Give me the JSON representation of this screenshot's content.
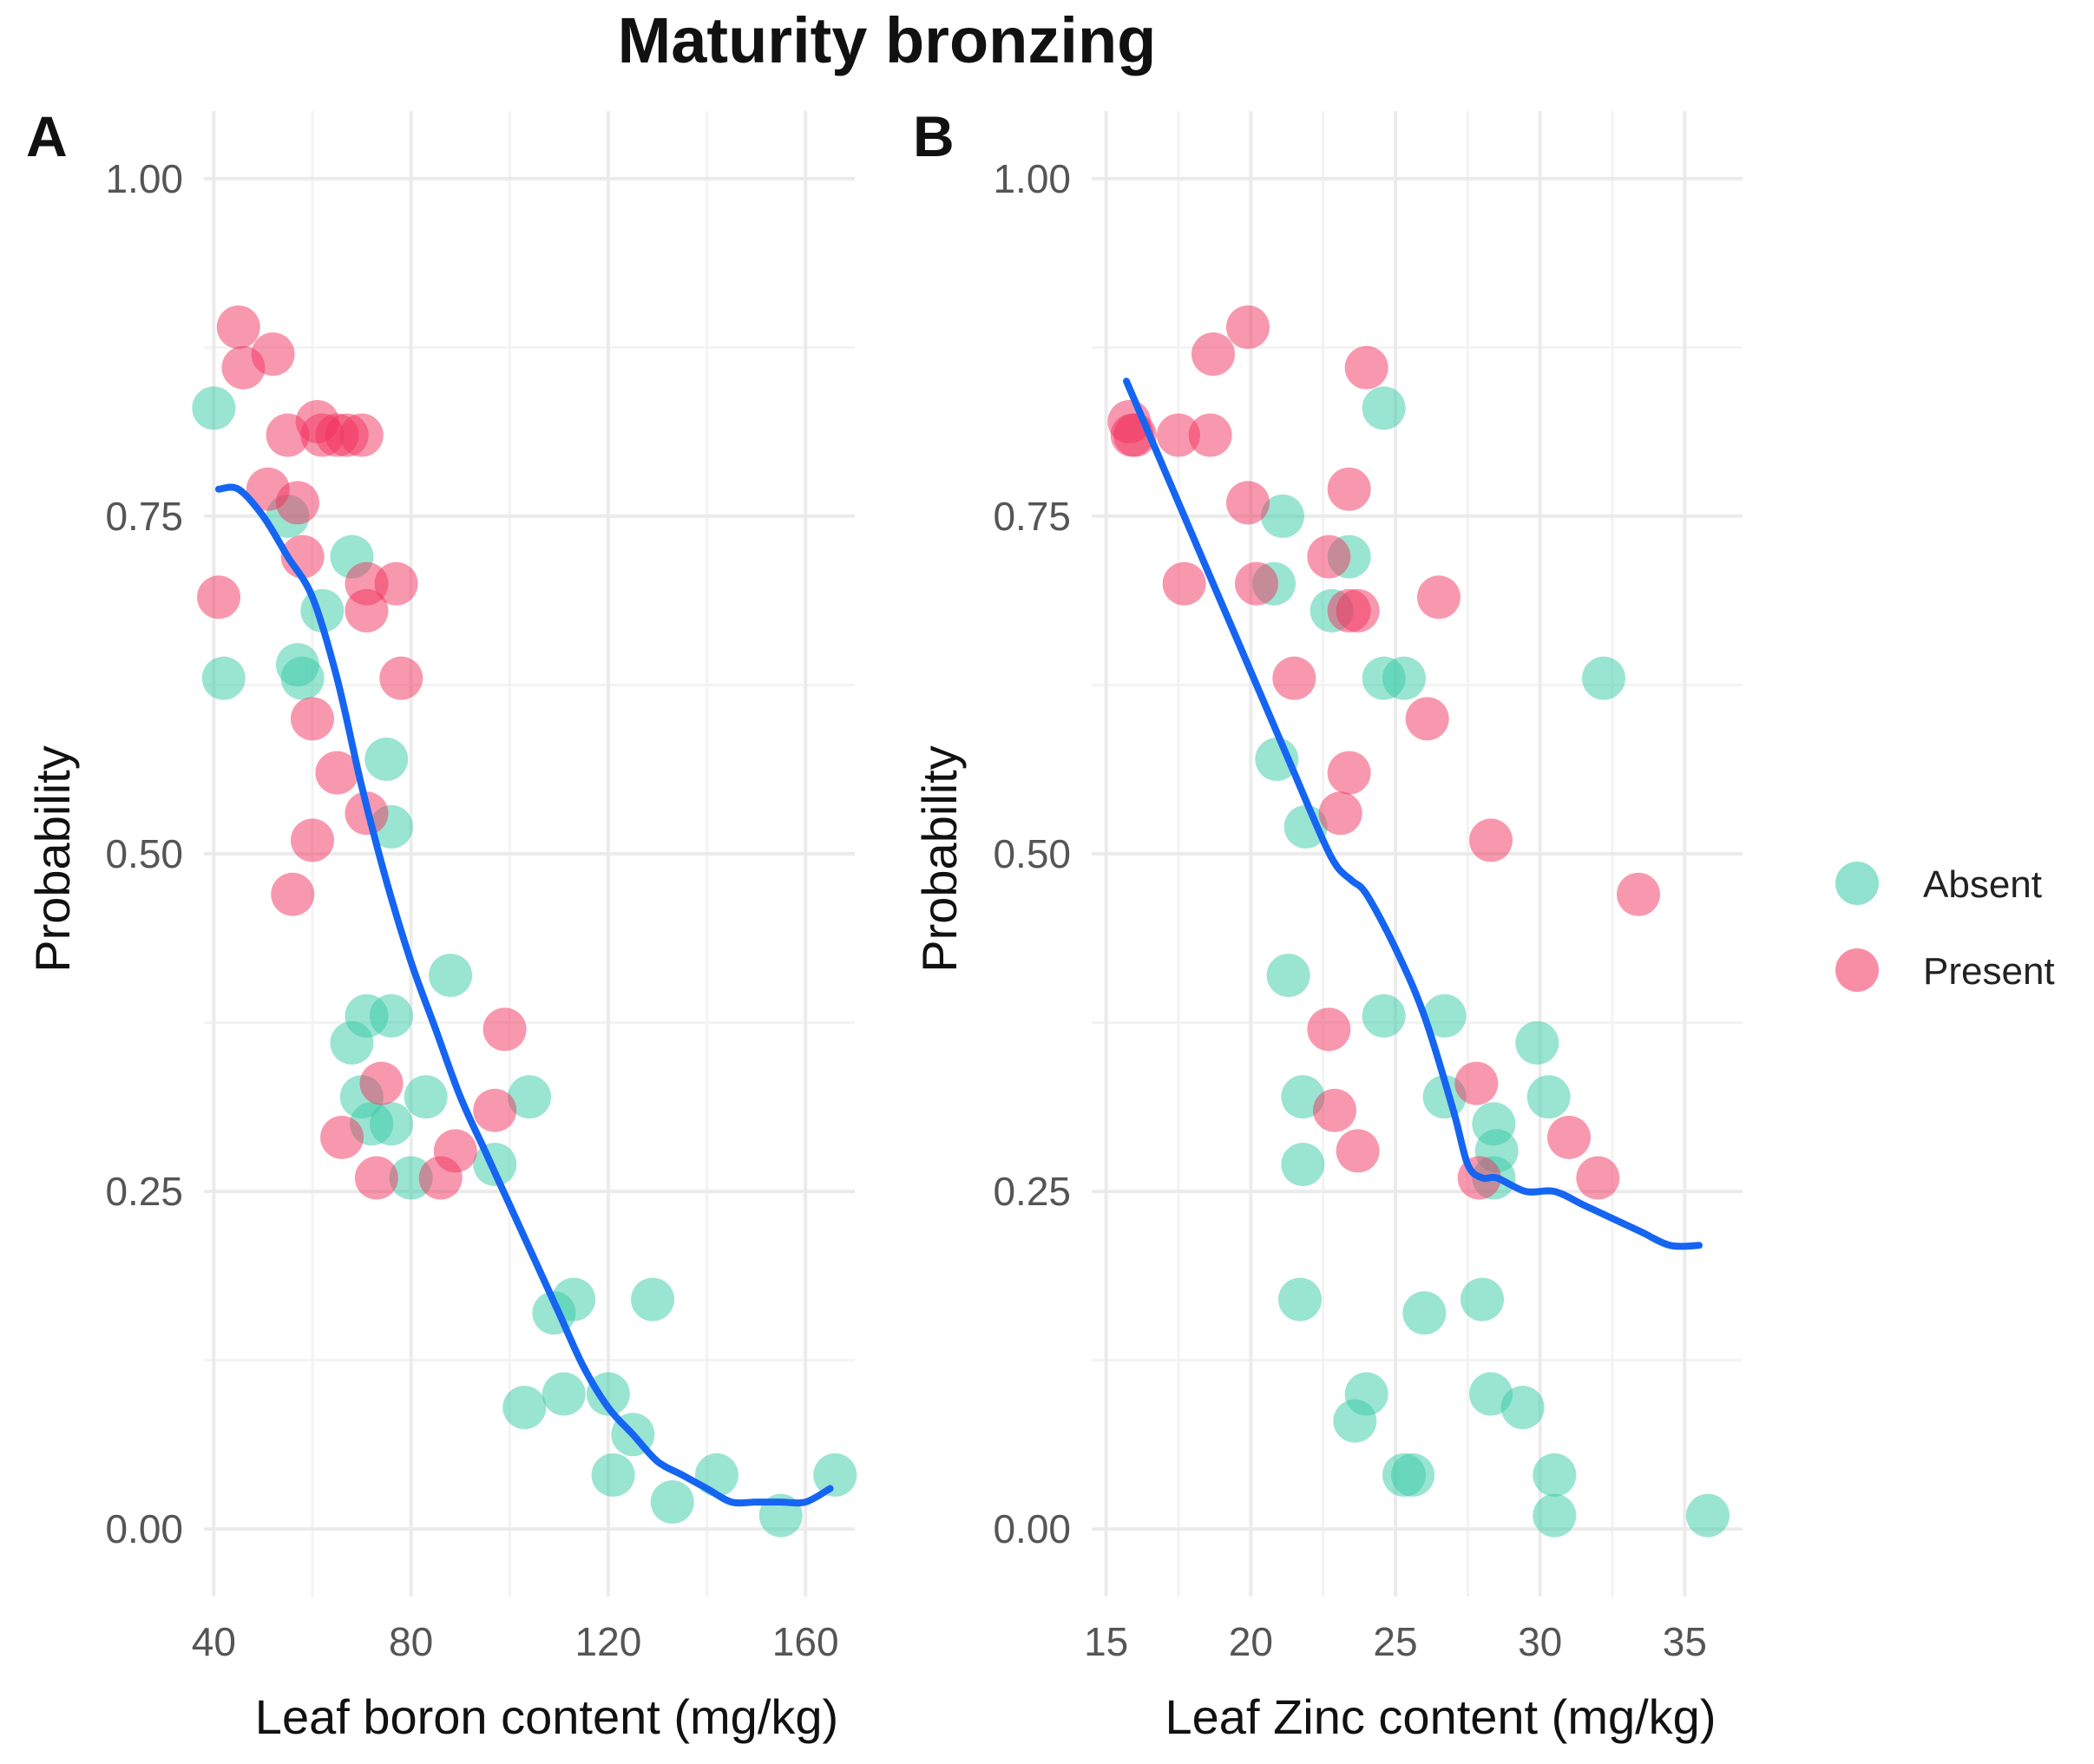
{
  "figure": {
    "title": "Maturity bronzing"
  },
  "colors": {
    "absent": "#35c9a6",
    "present": "#f2325d",
    "trend": "#1565f2"
  },
  "legend": [
    {
      "key": "absent",
      "label": "Absent"
    },
    {
      "key": "present",
      "label": "Present"
    }
  ],
  "chart_data": [
    {
      "type": "scatter",
      "panel": "A",
      "title": "Maturity bronzing",
      "xlabel": "Leaf boron content (mg/kg)",
      "ylabel": "Probability",
      "xlim": [
        38,
        170
      ],
      "ylim": [
        -0.05,
        1.05
      ],
      "xticks": [
        40,
        80,
        120,
        160
      ],
      "xticklabels": [
        "40",
        "80",
        "120",
        "160"
      ],
      "yticks": [
        0,
        0.25,
        0.5,
        0.75,
        1
      ],
      "yticklabels": [
        "0.00",
        "0.25",
        "0.50",
        "0.75",
        "1.00"
      ],
      "grid": true,
      "legend_position": "right",
      "series": [
        {
          "name": "Absent",
          "points": [
            [
              40,
              0.83
            ],
            [
              42,
              0.63
            ],
            [
              55,
              0.75
            ],
            [
              57,
              0.64
            ],
            [
              58,
              0.63
            ],
            [
              62,
              0.68
            ],
            [
              68,
              0.72
            ],
            [
              68,
              0.36
            ],
            [
              70,
              0.32
            ],
            [
              71,
              0.38
            ],
            [
              72,
              0.3
            ],
            [
              75,
              0.57
            ],
            [
              76,
              0.38
            ],
            [
              76,
              0.52
            ],
            [
              76,
              0.3
            ],
            [
              80,
              0.26
            ],
            [
              83,
              0.32
            ],
            [
              88,
              0.41
            ],
            [
              97,
              0.27
            ],
            [
              103,
              0.09
            ],
            [
              104,
              0.32
            ],
            [
              109,
              0.16
            ],
            [
              111,
              0.1
            ],
            [
              113,
              0.17
            ],
            [
              120,
              0.1
            ],
            [
              121,
              0.04
            ],
            [
              125,
              0.07
            ],
            [
              129,
              0.17
            ],
            [
              133,
              0.02
            ],
            [
              142,
              0.04
            ],
            [
              155,
              0.01
            ],
            [
              166,
              0.04
            ]
          ]
        },
        {
          "name": "Present",
          "points": [
            [
              41,
              0.69
            ],
            [
              45,
              0.89
            ],
            [
              46,
              0.86
            ],
            [
              52,
              0.87
            ],
            [
              51,
              0.77
            ],
            [
              55,
              0.81
            ],
            [
              57,
              0.76
            ],
            [
              58,
              0.72
            ],
            [
              60,
              0.6
            ],
            [
              60,
              0.51
            ],
            [
              61,
              0.82
            ],
            [
              62,
              0.81
            ],
            [
              65,
              0.81
            ],
            [
              67,
              0.81
            ],
            [
              65,
              0.56
            ],
            [
              66,
              0.29
            ],
            [
              70,
              0.81
            ],
            [
              71,
              0.7
            ],
            [
              71,
              0.68
            ],
            [
              71,
              0.53
            ],
            [
              73,
              0.26
            ],
            [
              74,
              0.33
            ],
            [
              77,
              0.7
            ],
            [
              78,
              0.63
            ],
            [
              56,
              0.47
            ],
            [
              86,
              0.26
            ],
            [
              89,
              0.28
            ],
            [
              97,
              0.31
            ],
            [
              99,
              0.37
            ]
          ]
        }
      ],
      "trend": {
        "name": "fitted curve",
        "points": [
          [
            41,
            0.77
          ],
          [
            45,
            0.77
          ],
          [
            50,
            0.75
          ],
          [
            55,
            0.72
          ],
          [
            60,
            0.69
          ],
          [
            65,
            0.63
          ],
          [
            70,
            0.55
          ],
          [
            75,
            0.48
          ],
          [
            80,
            0.42
          ],
          [
            85,
            0.37
          ],
          [
            90,
            0.32
          ],
          [
            95,
            0.28
          ],
          [
            100,
            0.24
          ],
          [
            105,
            0.2
          ],
          [
            110,
            0.16
          ],
          [
            115,
            0.12
          ],
          [
            120,
            0.09
          ],
          [
            125,
            0.07
          ],
          [
            130,
            0.05
          ],
          [
            135,
            0.04
          ],
          [
            140,
            0.03
          ],
          [
            145,
            0.02
          ],
          [
            150,
            0.02
          ],
          [
            155,
            0.02
          ],
          [
            160,
            0.02
          ],
          [
            165,
            0.03
          ]
        ]
      }
    },
    {
      "type": "scatter",
      "panel": "B",
      "title": "Maturity bronzing",
      "xlabel": "Leaf Zinc content (mg/kg)",
      "ylabel": "Probability",
      "xlim": [
        14.5,
        37
      ],
      "ylim": [
        -0.05,
        1.05
      ],
      "xticks": [
        15,
        20,
        25,
        30,
        35
      ],
      "xticklabels": [
        "15",
        "20",
        "25",
        "30",
        "35"
      ],
      "yticks": [
        0,
        0.25,
        0.5,
        0.75,
        1
      ],
      "yticklabels": [
        "0.00",
        "0.25",
        "0.50",
        "0.75",
        "1.00"
      ],
      "grid": true,
      "legend_position": "right",
      "series": [
        {
          "name": "Absent",
          "points": [
            [
              20.8,
              0.7
            ],
            [
              21.1,
              0.75
            ],
            [
              21.3,
              0.41
            ],
            [
              20.9,
              0.57
            ],
            [
              21.9,
              0.52
            ],
            [
              21.8,
              0.32
            ],
            [
              21.8,
              0.27
            ],
            [
              21.7,
              0.17
            ],
            [
              22.8,
              0.68
            ],
            [
              23.4,
              0.72
            ],
            [
              23.6,
              0.08
            ],
            [
              24.0,
              0.1
            ],
            [
              24.6,
              0.83
            ],
            [
              24.6,
              0.63
            ],
            [
              24.6,
              0.38
            ],
            [
              25.3,
              0.63
            ],
            [
              25.3,
              0.04
            ],
            [
              25.6,
              0.04
            ],
            [
              26.0,
              0.16
            ],
            [
              26.7,
              0.38
            ],
            [
              26.7,
              0.32
            ],
            [
              28.0,
              0.17
            ],
            [
              28.3,
              0.1
            ],
            [
              28.4,
              0.3
            ],
            [
              28.5,
              0.28
            ],
            [
              28.4,
              0.26
            ],
            [
              29.4,
              0.09
            ],
            [
              29.9,
              0.36
            ],
            [
              30.3,
              0.32
            ],
            [
              30.5,
              0.04
            ],
            [
              30.5,
              0.01
            ],
            [
              32.2,
              0.63
            ],
            [
              35.8,
              0.01
            ]
          ]
        },
        {
          "name": "Present",
          "points": [
            [
              15.8,
              0.82
            ],
            [
              15.9,
              0.81
            ],
            [
              16.0,
              0.81
            ],
            [
              17.5,
              0.81
            ],
            [
              17.7,
              0.7
            ],
            [
              18.6,
              0.81
            ],
            [
              18.7,
              0.87
            ],
            [
              19.9,
              0.89
            ],
            [
              19.9,
              0.76
            ],
            [
              20.2,
              0.7
            ],
            [
              21.5,
              0.63
            ],
            [
              22.7,
              0.72
            ],
            [
              22.7,
              0.37
            ],
            [
              22.9,
              0.31
            ],
            [
              23.1,
              0.53
            ],
            [
              23.4,
              0.56
            ],
            [
              23.4,
              0.77
            ],
            [
              23.4,
              0.68
            ],
            [
              23.7,
              0.68
            ],
            [
              23.7,
              0.28
            ],
            [
              24.0,
              0.86
            ],
            [
              26.1,
              0.6
            ],
            [
              26.5,
              0.69
            ],
            [
              27.8,
              0.33
            ],
            [
              27.9,
              0.26
            ],
            [
              28.3,
              0.51
            ],
            [
              31.0,
              0.29
            ],
            [
              32.0,
              0.26
            ],
            [
              33.4,
              0.47
            ]
          ]
        }
      ],
      "trend": {
        "name": "fitted curve",
        "points": [
          [
            15.7,
            0.85
          ],
          [
            16.5,
            0.81
          ],
          [
            17.5,
            0.76
          ],
          [
            18.5,
            0.71
          ],
          [
            19.5,
            0.66
          ],
          [
            20.5,
            0.61
          ],
          [
            21.5,
            0.56
          ],
          [
            22.5,
            0.51
          ],
          [
            23.0,
            0.49
          ],
          [
            23.5,
            0.48
          ],
          [
            24.0,
            0.47
          ],
          [
            25.0,
            0.43
          ],
          [
            26.0,
            0.38
          ],
          [
            27.0,
            0.31
          ],
          [
            27.5,
            0.27
          ],
          [
            28.0,
            0.26
          ],
          [
            28.5,
            0.26
          ],
          [
            29.5,
            0.25
          ],
          [
            30.5,
            0.25
          ],
          [
            31.5,
            0.24
          ],
          [
            32.5,
            0.23
          ],
          [
            33.5,
            0.22
          ],
          [
            34.5,
            0.21
          ],
          [
            35.5,
            0.21
          ]
        ]
      }
    }
  ]
}
